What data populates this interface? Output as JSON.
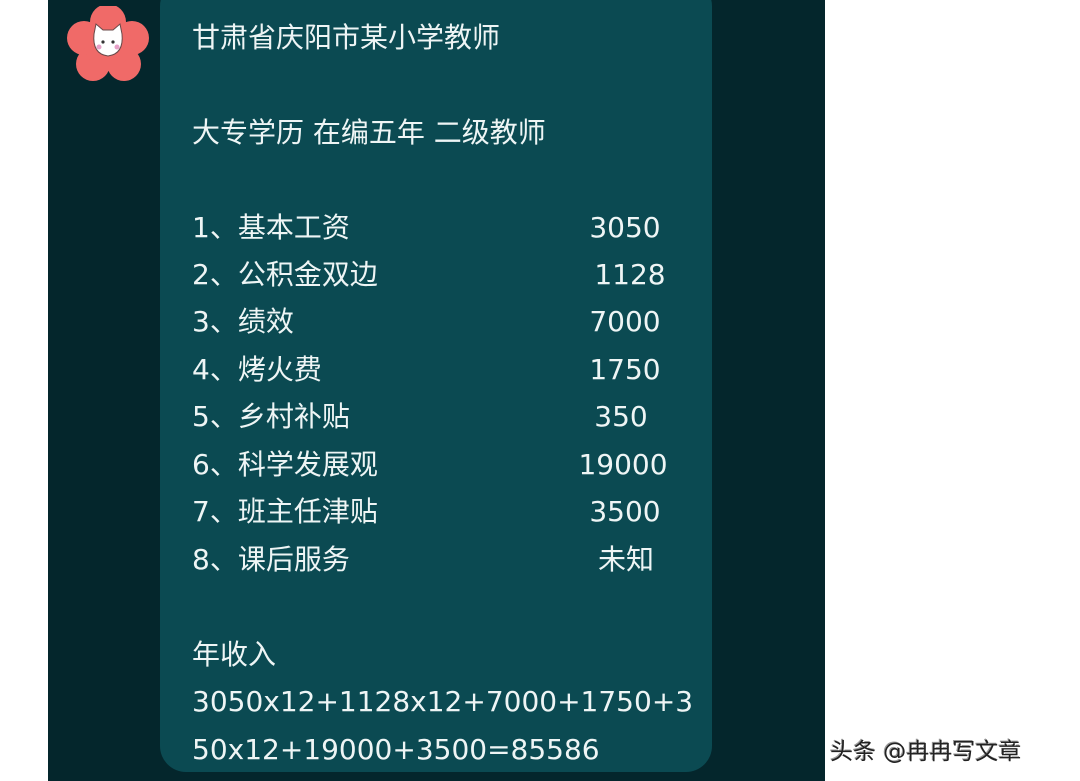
{
  "message": {
    "title": "甘肃省庆阳市某小学教师",
    "subtitle": "大专学历 在编五年 二级教师",
    "items": [
      {
        "label": "1、基本工资",
        "value": "3050"
      },
      {
        "label": "2、公积金双边",
        "value": "1128"
      },
      {
        "label": "3、绩效",
        "value": "7000"
      },
      {
        "label": "4、烤火费",
        "value": "1750"
      },
      {
        "label": "5、乡村补贴",
        "value": "350"
      },
      {
        "label": "6、科学发展观",
        "value": "19000"
      },
      {
        "label": "7、班主任津贴",
        "value": "3500"
      },
      {
        "label": "8、课后服务",
        "value": "未知"
      }
    ],
    "annual_label": "年收入",
    "formula_line1": "3050x12+1128x12+7000+1750+3",
    "formula_line2": "50x12+19000+3500=85586"
  },
  "avatar": {
    "icon": "cat-flower-avatar",
    "color": "#f06a68"
  },
  "watermark": "头条 @冉冉写文章",
  "colors": {
    "panel": "#04262c",
    "bubble": "#0b4a52",
    "text": "#eef5f5"
  }
}
